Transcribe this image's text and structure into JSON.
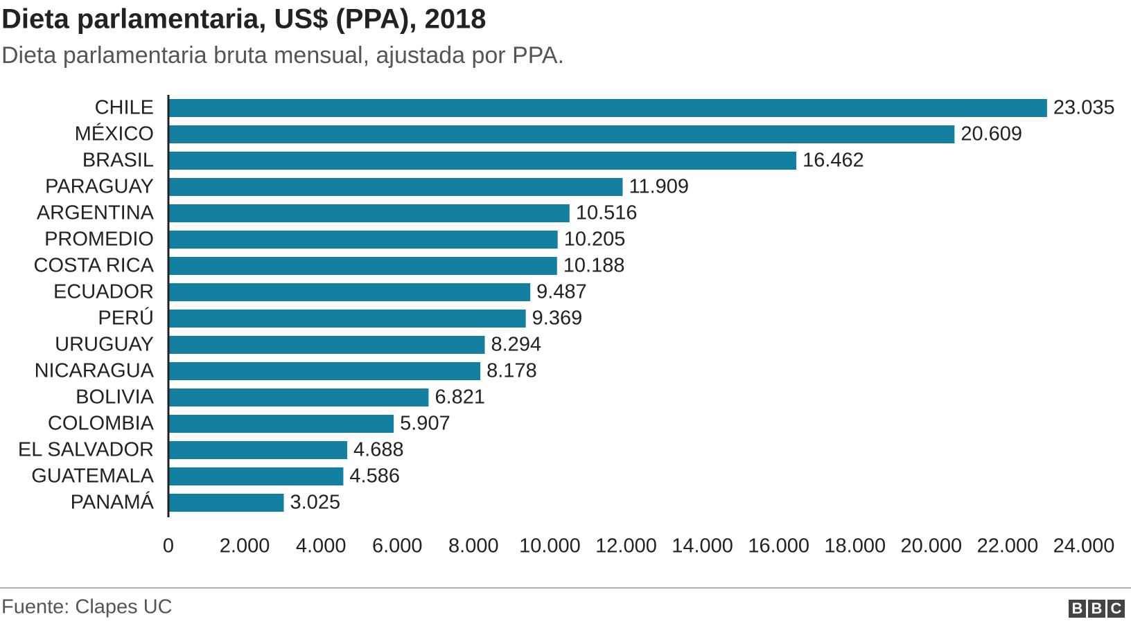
{
  "chart_data": {
    "type": "bar",
    "orientation": "horizontal",
    "title": "Dieta parlamentaria, US$ (PPA), 2018",
    "subtitle": "Dieta parlamentaria bruta mensual, ajustada por PPA.",
    "categories": [
      "CHILE",
      "MÉXICO",
      "BRASIL",
      "PARAGUAY",
      "ARGENTINA",
      "PROMEDIO",
      "COSTA RICA",
      "ECUADOR",
      "PERÚ",
      "URUGUAY",
      "NICARAGUA",
      "BOLIVIA",
      "COLOMBIA",
      "EL SALVADOR",
      "GUATEMALA",
      "PANAMÁ"
    ],
    "values": [
      23035,
      20609,
      16462,
      11909,
      10516,
      10205,
      10188,
      9487,
      9369,
      8294,
      8178,
      6821,
      5907,
      4688,
      4586,
      3025
    ],
    "value_labels": [
      "23.035",
      "20.609",
      "16.462",
      "11.909",
      "10.516",
      "10.205",
      "10.188",
      "9.487",
      "9.369",
      "8.294",
      "8.178",
      "6.821",
      "5.907",
      "4.688",
      "4.586",
      "3.025"
    ],
    "color": "#1380a1",
    "xlim": [
      0,
      24000
    ],
    "xticks": [
      0,
      {
        "value": 2000,
        "label": "2.000"
      },
      {
        "value": 4000,
        "label": "4.000"
      },
      {
        "value": 6000,
        "label": "6.000"
      },
      {
        "value": 8000,
        "label": "8.000"
      },
      {
        "value": 10000,
        "label": "10.000"
      },
      {
        "value": 12000,
        "label": "12.000"
      },
      {
        "value": 14000,
        "label": "14.000"
      },
      {
        "value": 16000,
        "label": "16.000"
      },
      {
        "value": 18000,
        "label": "18.000"
      },
      {
        "value": 20000,
        "label": "20.000"
      },
      {
        "value": 22000,
        "label": "22.000"
      },
      {
        "value": 24000,
        "label": "24.000"
      }
    ],
    "grid": false,
    "source": "Fuente: Clapes UC",
    "logo": [
      "B",
      "B",
      "C"
    ]
  }
}
